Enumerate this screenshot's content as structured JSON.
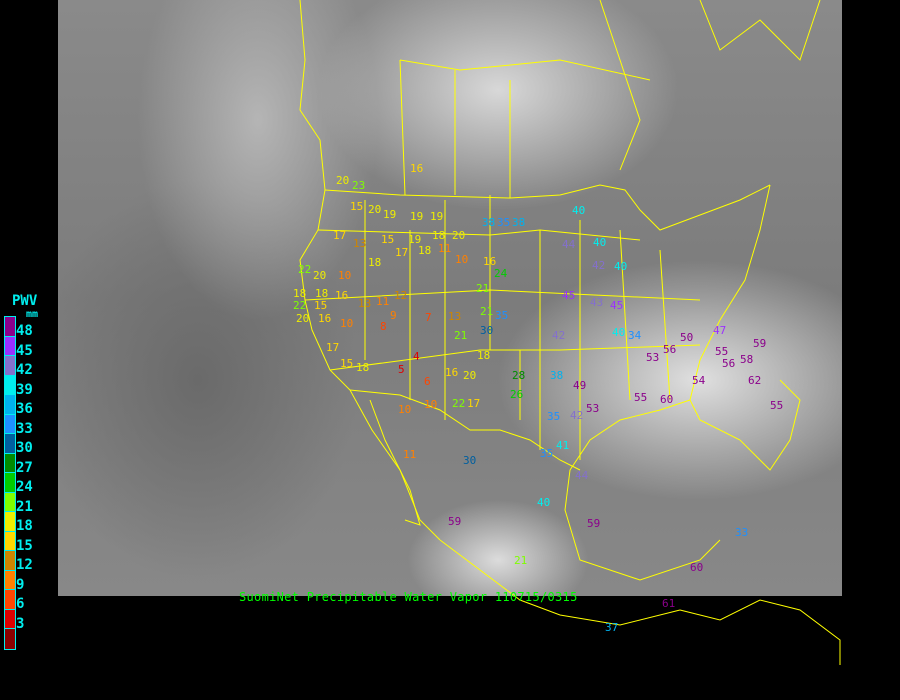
{
  "caption": "SuomiNet Precipitable Water Vapor 110715/0315",
  "legend": {
    "title": "PWV",
    "unit": "mm",
    "colors": [
      "#8b008b",
      "#9b30ff",
      "#8470cc",
      "#00eeee",
      "#00b2ee",
      "#1e90ff",
      "#005f9f",
      "#008b00",
      "#00cd00",
      "#7fff00",
      "#eeee00",
      "#ffd700",
      "#cd8500",
      "#ff8000",
      "#ff4500",
      "#dd0000",
      "#8b0000"
    ],
    "ticks": [
      "48",
      "45",
      "42",
      "39",
      "36",
      "33",
      "30",
      "27",
      "24",
      "21",
      "18",
      "15",
      "12",
      "9",
      "6",
      "3"
    ]
  },
  "border_color": "#ffff00",
  "stations": [
    {
      "value": "16"
    },
    {
      "value": "20"
    },
    {
      "value": "23"
    },
    {
      "value": "15"
    },
    {
      "value": "20"
    },
    {
      "value": "19"
    },
    {
      "value": "19"
    },
    {
      "value": "19"
    },
    {
      "value": "38"
    },
    {
      "value": "35"
    },
    {
      "value": "38"
    },
    {
      "value": "40"
    },
    {
      "value": "44"
    },
    {
      "value": "40"
    },
    {
      "value": "42"
    },
    {
      "value": "40"
    },
    {
      "value": "17"
    },
    {
      "value": "13"
    },
    {
      "value": "15"
    },
    {
      "value": "17"
    },
    {
      "value": "18"
    },
    {
      "value": "19"
    },
    {
      "value": "18"
    },
    {
      "value": "20"
    },
    {
      "value": "22"
    },
    {
      "value": "20"
    },
    {
      "value": "10"
    },
    {
      "value": "18"
    },
    {
      "value": "11"
    },
    {
      "value": "10"
    },
    {
      "value": "16"
    },
    {
      "value": "24"
    },
    {
      "value": "18"
    },
    {
      "value": "18"
    },
    {
      "value": "16"
    },
    {
      "value": "13"
    },
    {
      "value": "11"
    },
    {
      "value": "12"
    },
    {
      "value": "9"
    },
    {
      "value": "21"
    },
    {
      "value": "15"
    },
    {
      "value": "16"
    },
    {
      "value": "10"
    },
    {
      "value": "8"
    },
    {
      "value": "7"
    },
    {
      "value": "13"
    },
    {
      "value": "30"
    },
    {
      "value": "42"
    },
    {
      "value": "45"
    },
    {
      "value": "43"
    },
    {
      "value": "45"
    },
    {
      "value": "40"
    },
    {
      "value": "34"
    },
    {
      "value": "21"
    },
    {
      "value": "35"
    },
    {
      "value": "21"
    },
    {
      "value": "4"
    },
    {
      "value": "5"
    },
    {
      "value": "6"
    },
    {
      "value": "18"
    },
    {
      "value": "16"
    },
    {
      "value": "20"
    },
    {
      "value": "26"
    },
    {
      "value": "38"
    },
    {
      "value": "49"
    },
    {
      "value": "53"
    },
    {
      "value": "56"
    },
    {
      "value": "50"
    },
    {
      "value": "55"
    },
    {
      "value": "56"
    },
    {
      "value": "58"
    },
    {
      "value": "59"
    },
    {
      "value": "22"
    },
    {
      "value": "17"
    },
    {
      "value": "10"
    },
    {
      "value": "10"
    },
    {
      "value": "28"
    },
    {
      "value": "35"
    },
    {
      "value": "42"
    },
    {
      "value": "53"
    },
    {
      "value": "55"
    },
    {
      "value": "60"
    },
    {
      "value": "54"
    },
    {
      "value": "62"
    },
    {
      "value": "55"
    },
    {
      "value": "41"
    },
    {
      "value": "30"
    },
    {
      "value": "35"
    },
    {
      "value": "40"
    },
    {
      "value": "59"
    },
    {
      "value": "44"
    },
    {
      "value": "11"
    },
    {
      "value": "59"
    },
    {
      "value": "33"
    },
    {
      "value": "60"
    },
    {
      "value": "61"
    },
    {
      "value": "37"
    },
    {
      "value": "21"
    },
    {
      "value": "22"
    },
    {
      "value": "20"
    },
    {
      "value": "17"
    },
    {
      "value": "15"
    },
    {
      "value": "18"
    },
    {
      "value": "47"
    }
  ]
}
